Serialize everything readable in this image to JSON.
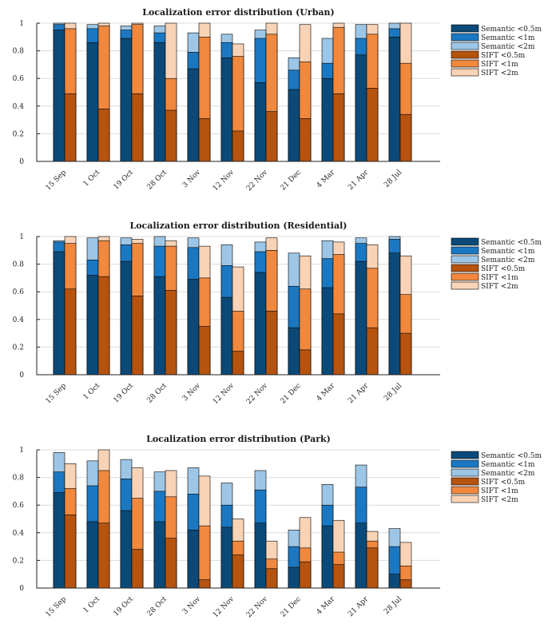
{
  "colors": {
    "sem_05": "#0b4a78",
    "sem_1": "#1a78c2",
    "sem_2": "#9dc6e6",
    "sift_05": "#b5530f",
    "sift_1": "#f0883e",
    "sift_2": "#f9d3b6"
  },
  "chart_data": [
    {
      "type": "bar",
      "title": "Localization error distribution (Urban)",
      "categories": [
        "15 Sep",
        "1 Oct",
        "19 Oct",
        "28 Oct",
        "3 Nov",
        "12 Nov",
        "22 Nov",
        "21 Dec",
        "4 Mar",
        "21 Apr",
        "28 Jul"
      ],
      "ylim": [
        0,
        1
      ],
      "yticks": [
        "0",
        "0.2",
        "0.4",
        "0.6",
        "0.8",
        "1"
      ],
      "legend": [
        "Semantic <0.5m",
        "Semantic <1m",
        "Semantic <2m",
        "SIFT <0.5m",
        "SIFT <1m",
        "SIFT <2m"
      ],
      "legend_position": "outside-right",
      "series": [
        {
          "name": "Semantic <0.5m",
          "values": [
            0.95,
            0.86,
            0.89,
            0.86,
            0.67,
            0.75,
            0.57,
            0.52,
            0.6,
            0.77,
            0.9
          ]
        },
        {
          "name": "Semantic <1m",
          "values": [
            0.99,
            0.96,
            0.95,
            0.93,
            0.79,
            0.86,
            0.89,
            0.66,
            0.71,
            0.89,
            0.96
          ]
        },
        {
          "name": "Semantic <2m",
          "values": [
            1.0,
            0.99,
            0.98,
            0.98,
            0.93,
            0.92,
            0.95,
            0.75,
            0.89,
            0.99,
            1.0
          ]
        },
        {
          "name": "SIFT <0.5m",
          "values": [
            0.49,
            0.38,
            0.49,
            0.37,
            0.31,
            0.22,
            0.36,
            0.31,
            0.49,
            0.53,
            0.34
          ]
        },
        {
          "name": "SIFT <1m",
          "values": [
            0.96,
            0.98,
            0.99,
            0.6,
            0.9,
            0.76,
            0.92,
            0.72,
            0.97,
            0.92,
            0.71
          ]
        },
        {
          "name": "SIFT <2m",
          "values": [
            1.0,
            1.0,
            1.0,
            1.0,
            1.0,
            0.85,
            1.0,
            0.99,
            1.0,
            0.99,
            1.0
          ]
        }
      ]
    },
    {
      "type": "bar",
      "title": "Localization error distribution (Residential)",
      "categories": [
        "15 Sep",
        "1 Oct",
        "19 Oct",
        "28 Oct",
        "3 Nov",
        "12 Nov",
        "22 Nov",
        "21 Dec",
        "4 Mar",
        "21 Apr",
        "28 Jul"
      ],
      "ylim": [
        0,
        1
      ],
      "yticks": [
        "0",
        "0.2",
        "0.4",
        "0.6",
        "0.8",
        "1"
      ],
      "legend": [
        "Semantic <0.5m",
        "Semantic <1m",
        "Semantic <2m",
        "SIFT <0.5m",
        "SIFT <1m",
        "SIFT <2m"
      ],
      "legend_position": "outside-right",
      "series": [
        {
          "name": "Semantic <0.5m",
          "values": [
            0.89,
            0.72,
            0.82,
            0.71,
            0.69,
            0.56,
            0.74,
            0.34,
            0.63,
            0.82,
            0.88
          ]
        },
        {
          "name": "Semantic <1m",
          "values": [
            0.96,
            0.83,
            0.94,
            0.93,
            0.92,
            0.79,
            0.89,
            0.64,
            0.84,
            0.95,
            0.98
          ]
        },
        {
          "name": "Semantic <2m",
          "values": [
            0.97,
            0.99,
            0.99,
            1.0,
            0.99,
            0.94,
            0.96,
            0.88,
            0.97,
            0.99,
            1.0
          ]
        },
        {
          "name": "SIFT <0.5m",
          "values": [
            0.62,
            0.71,
            0.57,
            0.61,
            0.35,
            0.17,
            0.46,
            0.18,
            0.44,
            0.34,
            0.3
          ]
        },
        {
          "name": "SIFT <1m",
          "values": [
            0.95,
            0.97,
            0.95,
            0.93,
            0.7,
            0.46,
            0.9,
            0.62,
            0.87,
            0.77,
            0.58
          ]
        },
        {
          "name": "SIFT <2m",
          "values": [
            1.0,
            1.0,
            0.98,
            0.97,
            0.93,
            0.78,
            0.99,
            0.86,
            0.96,
            0.94,
            0.86
          ]
        }
      ]
    },
    {
      "type": "bar",
      "title": "Localization error distribution (Park)",
      "categories": [
        "15 Sep",
        "1 Oct",
        "19 Oct",
        "28 Oct",
        "3 Nov",
        "12 Nov",
        "22 Nov",
        "21 Dec",
        "4 Mar",
        "21 Apr",
        "28 Jul"
      ],
      "ylim": [
        0,
        1
      ],
      "yticks": [
        "0",
        "0.2",
        "0.4",
        "0.6",
        "0.8",
        "1"
      ],
      "legend": [
        "Semantic <0.5m",
        "Semantic <1m",
        "Semantic <2m",
        "SIFT <0.5m",
        "SIFT <1m",
        "SIFT <2m"
      ],
      "legend_position": "outside-right",
      "series": [
        {
          "name": "Semantic <0.5m",
          "values": [
            0.69,
            0.48,
            0.56,
            0.48,
            0.42,
            0.44,
            0.47,
            0.15,
            0.45,
            0.47,
            0.1
          ]
        },
        {
          "name": "Semantic <1m",
          "values": [
            0.84,
            0.74,
            0.79,
            0.7,
            0.68,
            0.6,
            0.71,
            0.3,
            0.6,
            0.73,
            0.3
          ]
        },
        {
          "name": "Semantic <2m",
          "values": [
            0.98,
            0.92,
            0.93,
            0.84,
            0.87,
            0.76,
            0.85,
            0.42,
            0.75,
            0.89,
            0.43
          ]
        },
        {
          "name": "SIFT <0.5m",
          "values": [
            0.53,
            0.47,
            0.28,
            0.36,
            0.06,
            0.24,
            0.14,
            0.19,
            0.17,
            0.29,
            0.06
          ]
        },
        {
          "name": "SIFT <1m",
          "values": [
            0.72,
            0.85,
            0.65,
            0.66,
            0.45,
            0.34,
            0.21,
            0.29,
            0.26,
            0.34,
            0.16
          ]
        },
        {
          "name": "SIFT <2m",
          "values": [
            0.9,
            1.0,
            0.87,
            0.85,
            0.81,
            0.5,
            0.34,
            0.51,
            0.49,
            0.41,
            0.33
          ]
        }
      ]
    }
  ]
}
